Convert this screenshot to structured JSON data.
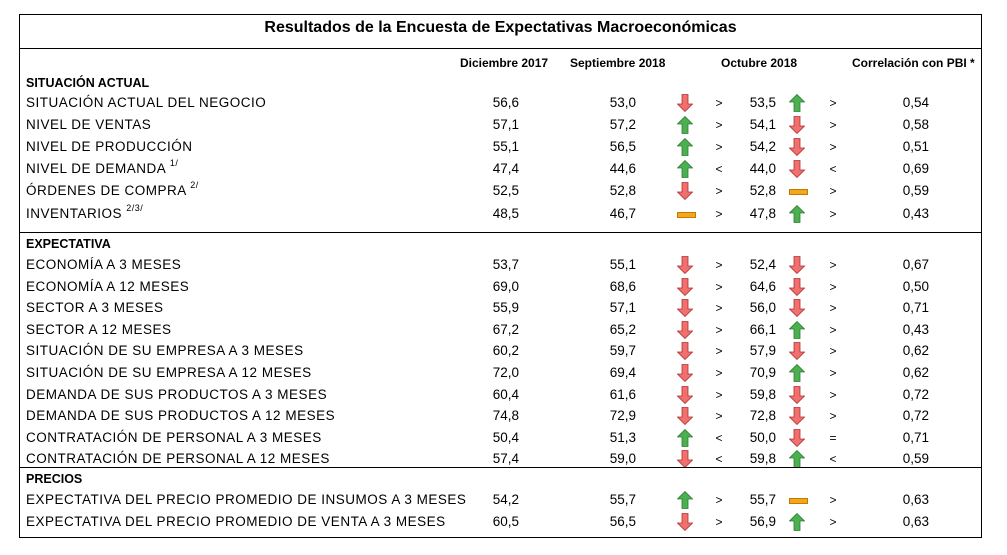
{
  "title": "Resultados de la Encuesta de Expectativas Macroeconómicas",
  "columns": {
    "dic2017": "Diciembre 2017",
    "sep2018": "Septiembre 2018",
    "oct2018": "Octubre 2018",
    "corr": "Correlación con PBI *"
  },
  "colors": {
    "up": "#4caf50",
    "down": "#f07070",
    "flat": "#f2a81d"
  },
  "sections": [
    {
      "name": "SITUACIÓN ACTUAL",
      "rows": [
        {
          "label": "SITUACIÓN ACTUAL DEL NEGOCIO",
          "sup": "",
          "dic": "56,6",
          "sep": "53,0",
          "sep_arrow": "down",
          "cmp1": ">",
          "oct": "53,5",
          "oct_arrow": "up",
          "cmp2": ">",
          "corr": "0,54"
        },
        {
          "label": "NIVEL DE VENTAS",
          "sup": "",
          "dic": "57,1",
          "sep": "57,2",
          "sep_arrow": "up",
          "cmp1": ">",
          "oct": "54,1",
          "oct_arrow": "down",
          "cmp2": ">",
          "corr": "0,58"
        },
        {
          "label": "NIVEL DE PRODUCCIÓN",
          "sup": "",
          "dic": "55,1",
          "sep": "56,5",
          "sep_arrow": "up",
          "cmp1": ">",
          "oct": "54,2",
          "oct_arrow": "down",
          "cmp2": ">",
          "corr": "0,51"
        },
        {
          "label": "NIVEL DE DEMANDA",
          "sup": "1/",
          "dic": "47,4",
          "sep": "44,6",
          "sep_arrow": "up",
          "cmp1": "<",
          "oct": "44,0",
          "oct_arrow": "down",
          "cmp2": "<",
          "corr": "0,69"
        },
        {
          "label": "ÓRDENES DE COMPRA",
          "sup": "2/",
          "dic": "52,5",
          "sep": "52,8",
          "sep_arrow": "down",
          "cmp1": ">",
          "oct": "52,8",
          "oct_arrow": "flat",
          "cmp2": ">",
          "corr": "0,59"
        },
        {
          "label": "INVENTARIOS",
          "sup": "2/3/",
          "dic": "48,5",
          "sep": "46,7",
          "sep_arrow": "flat",
          "cmp1": ">",
          "oct": "47,8",
          "oct_arrow": "up",
          "cmp2": ">",
          "corr": "0,43"
        }
      ]
    },
    {
      "name": "EXPECTATIVA",
      "rows": [
        {
          "label": "ECONOMÍA A 3 MESES",
          "sup": "",
          "dic": "53,7",
          "sep": "55,1",
          "sep_arrow": "down",
          "cmp1": ">",
          "oct": "52,4",
          "oct_arrow": "down",
          "cmp2": ">",
          "corr": "0,67"
        },
        {
          "label": "ECONOMÍA A 12 MESES",
          "sup": "",
          "dic": "69,0",
          "sep": "68,6",
          "sep_arrow": "down",
          "cmp1": ">",
          "oct": "64,6",
          "oct_arrow": "down",
          "cmp2": ">",
          "corr": "0,50"
        },
        {
          "label": "SECTOR A 3 MESES",
          "sup": "",
          "dic": "55,9",
          "sep": "57,1",
          "sep_arrow": "down",
          "cmp1": ">",
          "oct": "56,0",
          "oct_arrow": "down",
          "cmp2": ">",
          "corr": "0,71"
        },
        {
          "label": "SECTOR A 12 MESES",
          "sup": "",
          "dic": "67,2",
          "sep": "65,2",
          "sep_arrow": "down",
          "cmp1": ">",
          "oct": "66,1",
          "oct_arrow": "up",
          "cmp2": ">",
          "corr": "0,43"
        },
        {
          "label": "SITUACIÓN DE SU EMPRESA A 3 MESES",
          "sup": "",
          "dic": "60,2",
          "sep": "59,7",
          "sep_arrow": "down",
          "cmp1": ">",
          "oct": "57,9",
          "oct_arrow": "down",
          "cmp2": ">",
          "corr": "0,62"
        },
        {
          "label": "SITUACIÓN DE SU EMPRESA A 12 MESES",
          "sup": "",
          "dic": "72,0",
          "sep": "69,4",
          "sep_arrow": "down",
          "cmp1": ">",
          "oct": "70,9",
          "oct_arrow": "up",
          "cmp2": ">",
          "corr": "0,62"
        },
        {
          "label": "DEMANDA DE SUS PRODUCTOS A 3 MESES",
          "sup": "",
          "dic": "60,4",
          "sep": "61,6",
          "sep_arrow": "down",
          "cmp1": ">",
          "oct": "59,8",
          "oct_arrow": "down",
          "cmp2": ">",
          "corr": "0,72"
        },
        {
          "label": "DEMANDA DE SUS PRODUCTOS A 12 MESES",
          "sup": "",
          "dic": "74,8",
          "sep": "72,9",
          "sep_arrow": "down",
          "cmp1": ">",
          "oct": "72,8",
          "oct_arrow": "down",
          "cmp2": ">",
          "corr": "0,72"
        },
        {
          "label": "CONTRATACIÓN DE PERSONAL A 3 MESES",
          "sup": "",
          "dic": "50,4",
          "sep": "51,3",
          "sep_arrow": "up",
          "cmp1": "<",
          "oct": "50,0",
          "oct_arrow": "down",
          "cmp2": "=",
          "corr": "0,71"
        },
        {
          "label": "CONTRATACIÓN DE PERSONAL A 12 MESES",
          "sup": "",
          "dic": "57,4",
          "sep": "59,0",
          "sep_arrow": "down",
          "cmp1": "<",
          "oct": "59,8",
          "oct_arrow": "up",
          "cmp2": "<",
          "corr": "0,59"
        }
      ]
    },
    {
      "name": "PRECIOS",
      "rows": [
        {
          "label": "EXPECTATIVA DEL PRECIO PROMEDIO DE INSUMOS A 3 MESES",
          "sup": "",
          "dic": "54,2",
          "sep": "55,7",
          "sep_arrow": "up",
          "cmp1": ">",
          "oct": "55,7",
          "oct_arrow": "flat",
          "cmp2": ">",
          "corr": "0,63"
        },
        {
          "label": "EXPECTATIVA DEL PRECIO PROMEDIO DE VENTA A 3 MESES",
          "sup": "",
          "dic": "60,5",
          "sep": "56,5",
          "sep_arrow": "down",
          "cmp1": ">",
          "oct": "56,9",
          "oct_arrow": "up",
          "cmp2": ">",
          "corr": "0,63"
        }
      ]
    }
  ]
}
